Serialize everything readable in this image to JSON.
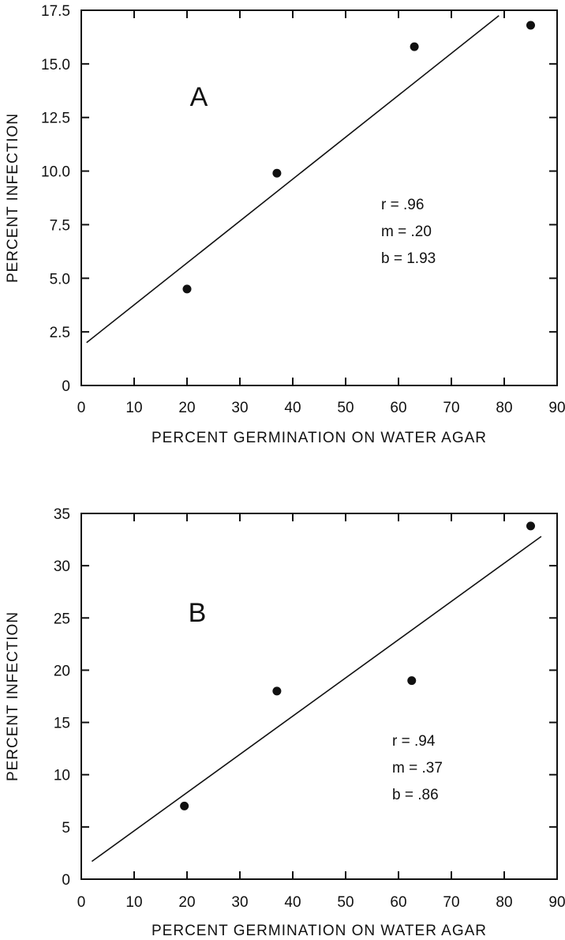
{
  "chart_data": [
    {
      "type": "scatter",
      "panel_label": "A",
      "xlabel": "PERCENT GERMINATION ON WATER AGAR",
      "ylabel": "PERCENT INFECTION",
      "xlim": [
        0,
        90
      ],
      "ylim": [
        0,
        17.5
      ],
      "x_ticks": [
        0,
        10,
        20,
        30,
        40,
        50,
        60,
        70,
        80,
        90
      ],
      "x_tick_labels": [
        "0",
        "10",
        "20",
        "30",
        "40",
        "50",
        "60",
        "70",
        "80",
        "90"
      ],
      "y_ticks": [
        0,
        2.5,
        5,
        7.5,
        10,
        12.5,
        15,
        17.5
      ],
      "y_tick_labels": [
        "0",
        "2.5",
        "5.0",
        "7.5",
        "10.0",
        "12.5",
        "15.0",
        "17.5"
      ],
      "points": [
        {
          "x": 20,
          "y": 4.5
        },
        {
          "x": 37,
          "y": 9.9
        },
        {
          "x": 63,
          "y": 15.8
        },
        {
          "x": 85,
          "y": 16.8
        }
      ],
      "fit_line": {
        "x": [
          1,
          79
        ],
        "y": [
          2.0,
          17.25
        ]
      },
      "stats": [
        "r = .96",
        "m = .20",
        "b = 1.93"
      ],
      "grid": false,
      "legend": "none"
    },
    {
      "type": "scatter",
      "panel_label": "B",
      "xlabel": "PERCENT GERMINATION ON WATER AGAR",
      "ylabel": "PERCENT INFECTION",
      "xlim": [
        0,
        90
      ],
      "ylim": [
        0,
        35
      ],
      "x_ticks": [
        0,
        10,
        20,
        30,
        40,
        50,
        60,
        70,
        80,
        90
      ],
      "x_tick_labels": [
        "0",
        "10",
        "20",
        "30",
        "40",
        "50",
        "60",
        "70",
        "80",
        "90"
      ],
      "y_ticks": [
        0,
        5,
        10,
        15,
        20,
        25,
        30,
        35
      ],
      "y_tick_labels": [
        "0",
        "5",
        "10",
        "15",
        "20",
        "25",
        "30",
        "35"
      ],
      "points": [
        {
          "x": 19.5,
          "y": 7
        },
        {
          "x": 37,
          "y": 18
        },
        {
          "x": 62.5,
          "y": 19
        },
        {
          "x": 85,
          "y": 33.8
        }
      ],
      "fit_line": {
        "x": [
          2,
          87
        ],
        "y": [
          1.7,
          32.8
        ]
      },
      "stats": [
        "r = .94",
        "m = .37",
        "b = .86"
      ],
      "grid": false,
      "legend": "none"
    }
  ]
}
